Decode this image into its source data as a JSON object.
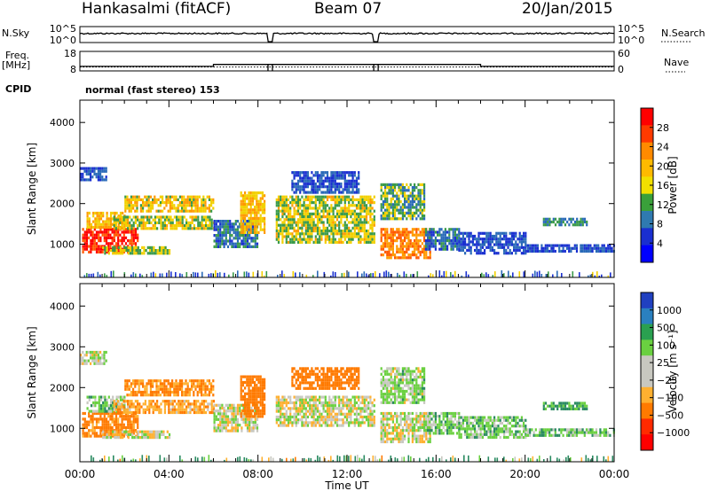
{
  "header": {
    "station": "Hankasalmi (fitACF)",
    "beam": "Beam 07",
    "date": "20/Jan/2015"
  },
  "side_labels": {
    "nsky": "N.Sky",
    "nsearch": "N.Search",
    "freq": "Freq.",
    "freq_unit": "[MHz]",
    "cpid": "CPID",
    "nave": "Nave"
  },
  "cpid_text": "normal (fast stereo) 153",
  "chart_data": [
    {
      "type": "line",
      "name": "noise-panel",
      "ylabels_left": [
        "10^5",
        "10^0"
      ],
      "ylabels_right": [
        "10^5",
        "10^0"
      ],
      "x": [
        0,
        7.5,
        8.5,
        13.3,
        13.5,
        24
      ],
      "nsky_level": "high with gaps near 08:30 and 13:20",
      "gaps_ut": [
        [
          8.45,
          8.65
        ],
        [
          13.2,
          13.4
        ]
      ]
    },
    {
      "type": "line",
      "name": "freq-nave-panel",
      "ylabels_left": [
        "18",
        "8"
      ],
      "ylabels_right": [
        "60",
        "0"
      ],
      "freq_mhz": [
        {
          "x": 0,
          "y": 10.3
        },
        {
          "x": 6,
          "y": 10.3
        },
        {
          "x": 6,
          "y": 11.3
        },
        {
          "x": 8.45,
          "y": 11.3
        },
        {
          "x": 8.65,
          "y": 11.3
        },
        {
          "x": 13.2,
          "y": 11.3
        },
        {
          "x": 13.4,
          "y": 11.3
        },
        {
          "x": 18,
          "y": 11.3
        },
        {
          "x": 18,
          "y": 10.3
        },
        {
          "x": 24,
          "y": 10.3
        }
      ],
      "nave_level": 12,
      "gaps_ut": [
        [
          8.45,
          8.65
        ],
        [
          13.2,
          13.4
        ]
      ]
    },
    {
      "type": "heatmap",
      "name": "power",
      "ylabel": "Slant Range [km]",
      "ylim": [
        180,
        4550
      ],
      "yticks": [
        1000,
        2000,
        3000,
        4000
      ],
      "xlim": [
        0,
        24
      ],
      "colorbar_label": "Power [dB]",
      "colorbar_ticks": [
        "28",
        "24",
        "20",
        "16",
        "12",
        "8",
        "4"
      ],
      "colorbar_colors": [
        "#ff0000",
        "#ff3a00",
        "#ff8a00",
        "#ffba00",
        "#f2e000",
        "#3aa03a",
        "#2f7ab0",
        "#1a2fd0",
        "#0000ff"
      ],
      "blobs": [
        {
          "t0": 0.1,
          "t1": 2.6,
          "r0": 800,
          "r1": 1400,
          "p": 27
        },
        {
          "t0": 0.3,
          "t1": 2.0,
          "r0": 1400,
          "r1": 1800,
          "p": 18
        },
        {
          "t0": 2.0,
          "t1": 6.0,
          "r0": 1800,
          "r1": 2200,
          "p": 17
        },
        {
          "t0": 1.5,
          "t1": 6.0,
          "r0": 1400,
          "r1": 1700,
          "p": 15
        },
        {
          "t0": 0.0,
          "t1": 1.2,
          "r0": 2600,
          "r1": 2900,
          "p": 6
        },
        {
          "t0": 1.0,
          "t1": 4.0,
          "r0": 800,
          "r1": 950,
          "p": 14
        },
        {
          "t0": 6.0,
          "t1": 8.0,
          "r0": 950,
          "r1": 1600,
          "p": 8
        },
        {
          "t0": 7.2,
          "t1": 8.3,
          "r0": 1300,
          "r1": 2300,
          "p": 18
        },
        {
          "t0": 8.8,
          "t1": 13.2,
          "r0": 1050,
          "r1": 2200,
          "p": 15
        },
        {
          "t0": 9.5,
          "t1": 12.5,
          "r0": 2300,
          "r1": 2800,
          "p": 6
        },
        {
          "t0": 13.5,
          "t1": 15.7,
          "r0": 700,
          "r1": 1400,
          "p": 22
        },
        {
          "t0": 13.5,
          "t1": 15.5,
          "r0": 1600,
          "r1": 2500,
          "p": 12
        },
        {
          "t0": 15.5,
          "t1": 17.0,
          "r0": 900,
          "r1": 1400,
          "p": 8
        },
        {
          "t0": 17.0,
          "t1": 20.0,
          "r0": 800,
          "r1": 1300,
          "p": 6
        },
        {
          "t0": 20.8,
          "t1": 22.8,
          "r0": 1450,
          "r1": 1650,
          "p": 10
        },
        {
          "t0": 20.0,
          "t1": 24.0,
          "r0": 850,
          "r1": 1000,
          "p": 6
        }
      ]
    },
    {
      "type": "heatmap",
      "name": "velocity",
      "ylabel": "Slant Range [km]",
      "ylim": [
        180,
        4550
      ],
      "yticks": [
        1000,
        2000,
        3000,
        4000
      ],
      "xlim": [
        0,
        24
      ],
      "xticks": [
        "00:00",
        "04:00",
        "08:00",
        "12:00",
        "16:00",
        "20:00",
        "00:00"
      ],
      "xlabel": "Time UT",
      "colorbar_label": "Velocity [m s⁻¹]",
      "colorbar_ticks": [
        "1000",
        "500",
        "100",
        "25",
        "−25",
        "−100",
        "−500",
        "−1000"
      ],
      "colorbar_colors": [
        "#2040c0",
        "#2a80c0",
        "#2aa050",
        "#6ad040",
        "#c8c8c0",
        "#c8c8c0",
        "#ffb030",
        "#ff7a00",
        "#ff2a00",
        "#ff0000"
      ],
      "blobs": [
        {
          "t0": 0.1,
          "t1": 2.6,
          "r0": 800,
          "r1": 1400,
          "v": -150
        },
        {
          "t0": 0.3,
          "t1": 2.0,
          "r0": 1400,
          "r1": 1800,
          "v": 60
        },
        {
          "t0": 2.0,
          "t1": 6.0,
          "r0": 1800,
          "r1": 2200,
          "v": -120
        },
        {
          "t0": 1.5,
          "t1": 6.0,
          "r0": 1400,
          "r1": 1700,
          "v": -80
        },
        {
          "t0": 0.0,
          "t1": 1.2,
          "r0": 2600,
          "r1": 2900,
          "v": 0
        },
        {
          "t0": 1.0,
          "t1": 4.0,
          "r0": 800,
          "r1": 950,
          "v": 0
        },
        {
          "t0": 6.0,
          "t1": 8.0,
          "r0": 950,
          "r1": 1600,
          "v": 0
        },
        {
          "t0": 7.2,
          "t1": 8.3,
          "r0": 1300,
          "r1": 2300,
          "v": -250
        },
        {
          "t0": 8.8,
          "t1": 13.2,
          "r0": 1050,
          "r1": 1800,
          "v": 0
        },
        {
          "t0": 9.5,
          "t1": 12.5,
          "r0": 2000,
          "r1": 2500,
          "v": -400
        },
        {
          "t0": 13.5,
          "t1": 15.7,
          "r0": 700,
          "r1": 1400,
          "v": 0
        },
        {
          "t0": 13.5,
          "t1": 15.5,
          "r0": 1600,
          "r1": 2500,
          "v": 40
        },
        {
          "t0": 15.5,
          "t1": 17.0,
          "r0": 900,
          "r1": 1400,
          "v": 60
        },
        {
          "t0": 17.0,
          "t1": 20.0,
          "r0": 800,
          "r1": 1300,
          "v": 60
        },
        {
          "t0": 20.8,
          "t1": 22.8,
          "r0": 1450,
          "r1": 1650,
          "v": 120
        },
        {
          "t0": 20.0,
          "t1": 24.0,
          "r0": 850,
          "r1": 1000,
          "v": 60
        }
      ]
    }
  ]
}
